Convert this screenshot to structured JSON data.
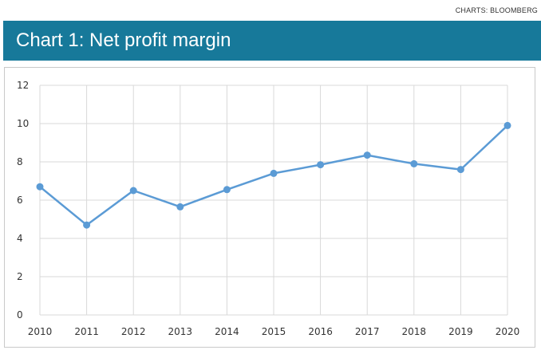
{
  "source": "CHARTS: BLOOMBERG",
  "title": "Chart 1: Net profit margin",
  "colors": {
    "title_bar": "#17799a",
    "series": "#5b9bd5",
    "grid": "#d9d9d9"
  },
  "chart_data": {
    "type": "line",
    "title": "Chart 1: Net profit margin",
    "xlabel": "",
    "ylabel": "",
    "x": [
      2010,
      2011,
      2012,
      2013,
      2014,
      2015,
      2016,
      2017,
      2018,
      2019,
      2020
    ],
    "series": [
      {
        "values": [
          6.7,
          4.7,
          6.5,
          5.65,
          6.55,
          7.4,
          7.85,
          8.35,
          7.9,
          7.6,
          9.9
        ]
      }
    ],
    "ylim": [
      0,
      12
    ],
    "yticks": [
      0,
      2,
      4,
      6,
      8,
      10,
      12
    ],
    "grid": true,
    "markers": true
  }
}
